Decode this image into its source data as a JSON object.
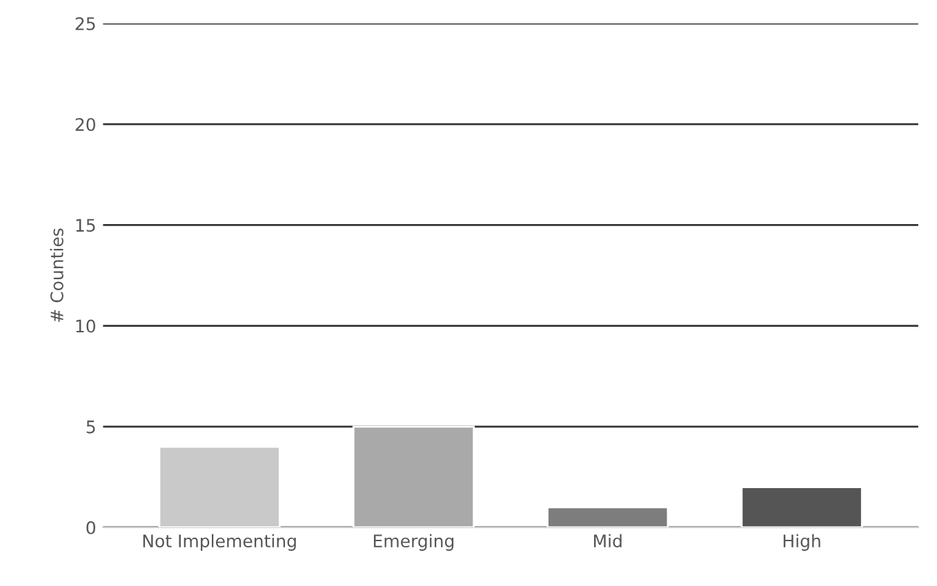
{
  "chart_data": {
    "type": "bar",
    "ylabel": "# Counties",
    "categories": [
      "Not Implementing",
      "Emerging",
      "Mid",
      "High"
    ],
    "values": [
      4,
      5,
      1,
      2
    ],
    "colors": [
      "#c9c9c9",
      "#a9a9a9",
      "#7d7d7d",
      "#555555"
    ],
    "ylim": [
      0,
      25
    ],
    "yticks": [
      0,
      5,
      10,
      15,
      20,
      25
    ],
    "grid": "y"
  }
}
